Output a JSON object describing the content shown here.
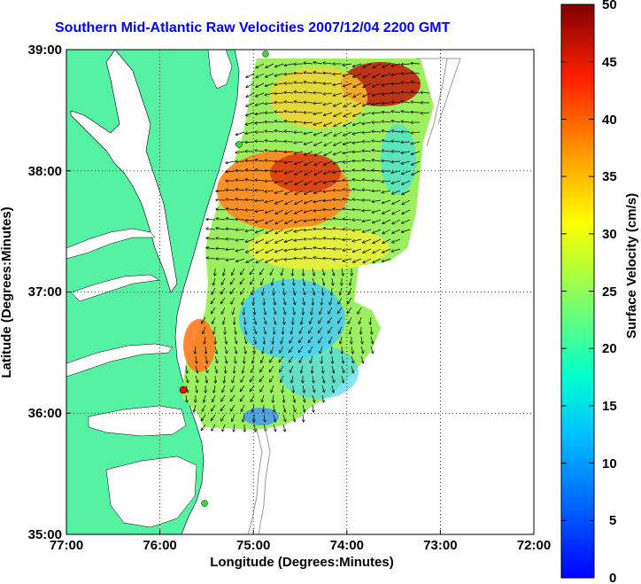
{
  "title": "Southern Mid-Atlantic Raw Velocities 2007/12/04 2200 GMT",
  "x_axis": {
    "label": "Longitude (Degrees:Minutes)",
    "ticks": [
      "77:00",
      "76:00",
      "75:00",
      "74:00",
      "73:00",
      "72:00"
    ]
  },
  "y_axis": {
    "label": "Latitude (Degrees:Minutes)",
    "ticks": [
      "39:00",
      "38:00",
      "37:00",
      "36:00",
      "35:00"
    ]
  },
  "colorbar": {
    "label": "Surface Velocity (cm/s)",
    "ticks": [
      "50",
      "45",
      "40",
      "35",
      "30",
      "25",
      "20",
      "15",
      "10",
      "5",
      "0"
    ],
    "min": 0,
    "max": 50,
    "colormap": "jet"
  },
  "colors": {
    "land": "#55f2a4",
    "title": "#0000ff",
    "station_active": "#ff0000",
    "station": "#33dd33",
    "bathymetry": "#999999"
  },
  "stations": [
    {
      "name": "station-north",
      "status": "active"
    },
    {
      "name": "station-mid",
      "status": "active"
    },
    {
      "name": "station-south-red",
      "status": "highlight"
    },
    {
      "name": "station-far-south",
      "status": "active"
    }
  ]
}
